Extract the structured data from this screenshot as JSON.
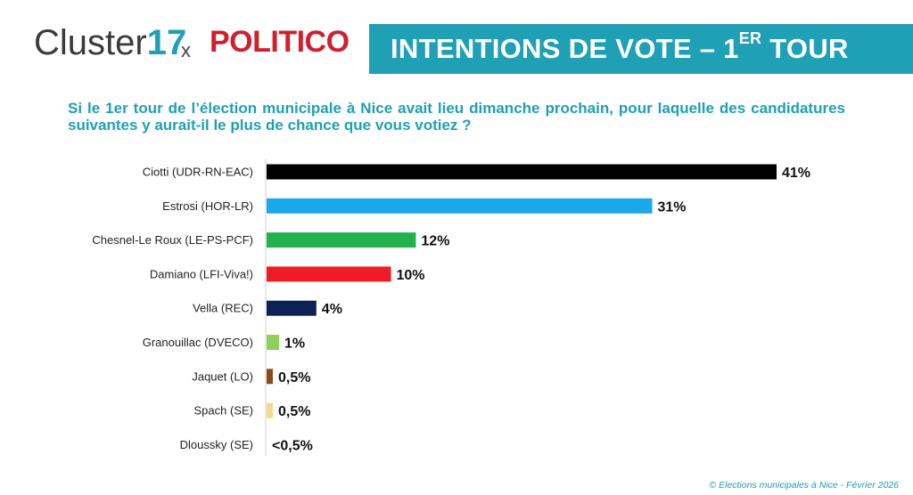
{
  "header": {
    "logo_text": "Cluster",
    "logo_number": "17",
    "separator": "x",
    "partner": "POLITICO",
    "banner_prefix": "INTENTIONS DE VOTE – 1",
    "banner_sup": "ER",
    "banner_suffix": " TOUR"
  },
  "question": "Si le 1er tour de l’élection municipale à Nice avait lieu dimanche prochain, pour laquelle des candidatures suivantes y aurait-il le plus de chance que vous votiez ?",
  "footer": "© Elections municipales à Nice - Février 2026",
  "colors": {
    "accent": "#1fa0b4",
    "politico": "#d0202e"
  },
  "chart_data": {
    "type": "bar",
    "orientation": "horizontal",
    "categories": [
      "Ciotti (UDR-RN-EAC)",
      "Estrosi (HOR-LR)",
      "Chesnel-Le Roux (LE-PS-PCF)",
      "Damiano (LFI-Viva!)",
      "Vella (REC)",
      "Granouillac (DVECO)",
      "Jaquet (LO)",
      "Spach (SE)",
      "Dloussky (SE)"
    ],
    "values": [
      41,
      31,
      12,
      10,
      4,
      1,
      0.5,
      0.5,
      0
    ],
    "value_labels": [
      "41%",
      "31%",
      "12%",
      "10%",
      "4%",
      "1%",
      "0,5%",
      "0,5%",
      "<0,5%"
    ],
    "bar_colors": [
      "#000000",
      "#1aa8e8",
      "#22b14c",
      "#ee1c24",
      "#0d2157",
      "#8ed15a",
      "#8a4a1c",
      "#f3d98a",
      "#ffffff"
    ],
    "xlim": [
      0,
      41
    ],
    "grid": false,
    "legend": "none"
  }
}
